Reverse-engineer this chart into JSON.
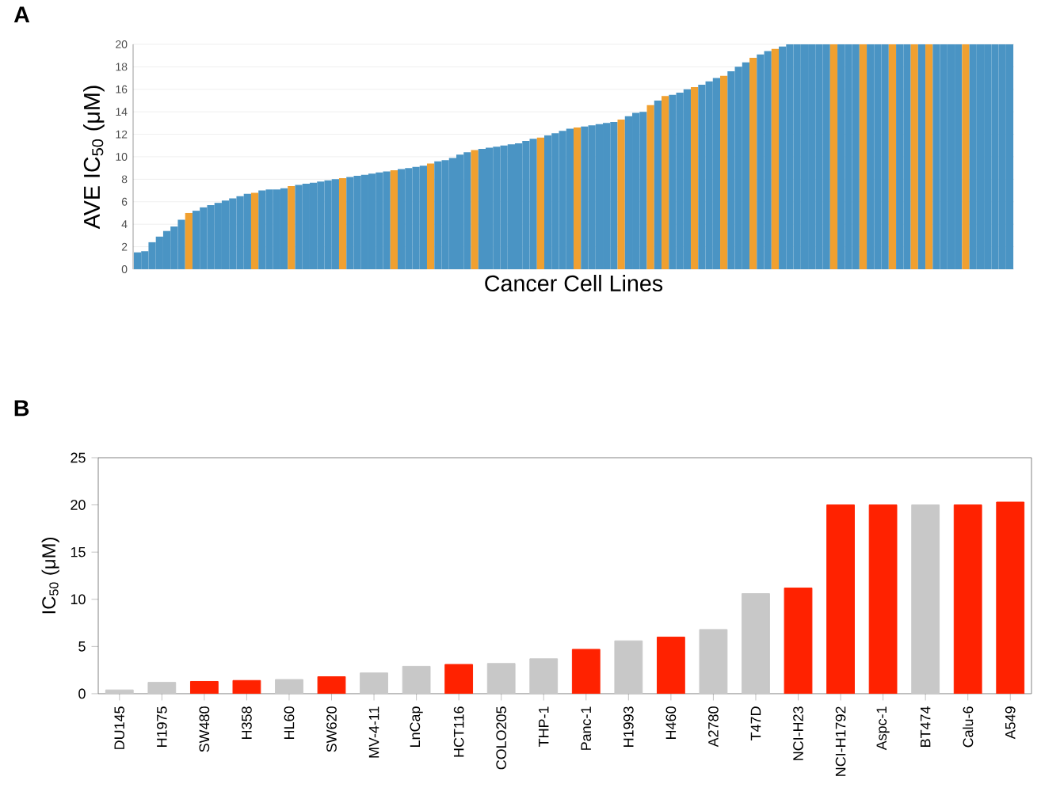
{
  "chart_data": [
    {
      "type": "bar",
      "title": "A",
      "xlabel": "Cancer Cell Lines",
      "ylabel": "AVE IC$_{50}$ (μM)",
      "tick_labels": "y",
      "grid": "y",
      "categories": [
        null,
        null,
        null,
        null,
        null,
        null,
        null,
        null,
        null,
        null,
        null,
        null,
        null,
        null,
        null,
        null,
        null,
        null,
        null,
        null,
        null,
        null,
        null,
        null,
        null,
        null,
        null,
        null,
        null,
        null,
        null,
        null,
        null,
        null,
        null,
        null,
        null,
        null,
        null,
        null,
        null,
        null,
        null,
        null,
        null,
        null,
        null,
        null,
        null,
        null,
        null,
        null,
        null,
        null,
        null,
        null,
        null,
        null,
        null,
        null,
        null,
        null,
        null,
        null,
        null,
        null,
        null,
        null,
        null,
        null,
        null,
        null,
        null,
        null,
        null,
        null,
        null,
        null,
        null,
        null,
        null,
        null,
        null,
        null,
        null,
        null,
        null,
        null,
        null,
        null,
        null,
        null,
        null,
        null,
        null,
        null,
        null,
        null,
        null,
        null,
        null,
        null,
        null,
        null,
        null,
        null,
        null,
        null,
        null,
        null,
        null,
        null,
        null,
        null,
        null,
        null,
        null,
        null,
        null,
        null
      ],
      "values": [
        1.5,
        1.6,
        2.4,
        2.9,
        3.4,
        3.8,
        4.4,
        5.0,
        5.2,
        5.5,
        5.7,
        5.9,
        6.1,
        6.3,
        6.5,
        6.7,
        6.8,
        7.0,
        7.1,
        7.1,
        7.2,
        7.4,
        7.5,
        7.6,
        7.7,
        7.8,
        7.9,
        8.0,
        8.1,
        8.2,
        8.3,
        8.4,
        8.5,
        8.6,
        8.7,
        8.8,
        8.9,
        9.0,
        9.1,
        9.2,
        9.4,
        9.6,
        9.7,
        9.9,
        10.2,
        10.4,
        10.6,
        10.7,
        10.8,
        10.9,
        11.0,
        11.1,
        11.2,
        11.4,
        11.6,
        11.7,
        11.9,
        12.1,
        12.3,
        12.5,
        12.6,
        12.7,
        12.8,
        12.9,
        13.0,
        13.1,
        13.3,
        13.6,
        13.9,
        14.0,
        14.6,
        15.0,
        15.4,
        15.5,
        15.7,
        16.0,
        16.2,
        16.4,
        16.7,
        17.0,
        17.2,
        17.6,
        18.0,
        18.4,
        18.8,
        19.1,
        19.4,
        19.6,
        19.8,
        20,
        20,
        20,
        20,
        20,
        20,
        20,
        20,
        20,
        20,
        20,
        20,
        20,
        20,
        20,
        20,
        20,
        20,
        20,
        20,
        20,
        20,
        20,
        20,
        20,
        20,
        20,
        20,
        20,
        20,
        20
      ],
      "colors": [
        "#4a94c4",
        "#4a94c4",
        "#4a94c4",
        "#4a94c4",
        "#4a94c4",
        "#4a94c4",
        "#4a94c4",
        "#f0a030",
        "#4a94c4",
        "#4a94c4",
        "#4a94c4",
        "#4a94c4",
        "#4a94c4",
        "#4a94c4",
        "#4a94c4",
        "#4a94c4",
        "#f0a030",
        "#4a94c4",
        "#4a94c4",
        "#4a94c4",
        "#4a94c4",
        "#f0a030",
        "#4a94c4",
        "#4a94c4",
        "#4a94c4",
        "#4a94c4",
        "#4a94c4",
        "#4a94c4",
        "#f0a030",
        "#4a94c4",
        "#4a94c4",
        "#4a94c4",
        "#4a94c4",
        "#4a94c4",
        "#4a94c4",
        "#f0a030",
        "#4a94c4",
        "#4a94c4",
        "#4a94c4",
        "#4a94c4",
        "#f0a030",
        "#4a94c4",
        "#4a94c4",
        "#4a94c4",
        "#4a94c4",
        "#4a94c4",
        "#f0a030",
        "#4a94c4",
        "#4a94c4",
        "#4a94c4",
        "#4a94c4",
        "#4a94c4",
        "#4a94c4",
        "#4a94c4",
        "#4a94c4",
        "#f0a030",
        "#4a94c4",
        "#4a94c4",
        "#4a94c4",
        "#4a94c4",
        "#f0a030",
        "#4a94c4",
        "#4a94c4",
        "#4a94c4",
        "#4a94c4",
        "#4a94c4",
        "#f0a030",
        "#4a94c4",
        "#4a94c4",
        "#4a94c4",
        "#f0a030",
        "#4a94c4",
        "#f0a030",
        "#4a94c4",
        "#4a94c4",
        "#4a94c4",
        "#f0a030",
        "#4a94c4",
        "#4a94c4",
        "#4a94c4",
        "#f0a030",
        "#4a94c4",
        "#4a94c4",
        "#4a94c4",
        "#f0a030",
        "#4a94c4",
        "#4a94c4",
        "#f0a030",
        "#4a94c4",
        "#4a94c4",
        "#4a94c4",
        "#4a94c4",
        "#4a94c4",
        "#4a94c4",
        "#4a94c4",
        "#f0a030",
        "#4a94c4",
        "#4a94c4",
        "#4a94c4",
        "#f0a030",
        "#4a94c4",
        "#4a94c4",
        "#4a94c4",
        "#f0a030",
        "#4a94c4",
        "#4a94c4",
        "#f0a030",
        "#4a94c4",
        "#f0a030",
        "#4a94c4",
        "#4a94c4",
        "#4a94c4",
        "#4a94c4",
        "#f0a030",
        "#4a94c4",
        "#4a94c4",
        "#4a94c4",
        "#4a94c4",
        "#4a94c4",
        "#4a94c4"
      ],
      "ylim": [
        0,
        20
      ],
      "yticks": [
        0,
        2,
        4,
        6,
        8,
        10,
        12,
        14,
        16,
        18,
        20
      ]
    },
    {
      "type": "bar",
      "title": "B",
      "ylabel": "IC$_{50}$ (μM)",
      "categories": [
        "DU145",
        "H1975",
        "SW480",
        "H358",
        "HL60",
        "SW620",
        "MV-4-11",
        "LnCap",
        "HCT116",
        "COLO205",
        "THP-1",
        "Panc-1",
        "H1993",
        "H460",
        "A2780",
        "T47D",
        "NCI-H23",
        "NCI-H1792",
        "Aspc-1",
        "BT474",
        "Calu-6",
        "A549"
      ],
      "values": [
        0.4,
        1.2,
        1.3,
        1.4,
        1.5,
        1.8,
        2.2,
        2.9,
        3.1,
        3.2,
        3.7,
        4.7,
        5.6,
        6.0,
        6.8,
        10.6,
        11.2,
        20,
        20,
        20,
        20,
        20.3
      ],
      "colors": [
        "#c8c8c8",
        "#c8c8c8",
        "#ff2200",
        "#ff2200",
        "#c8c8c8",
        "#ff2200",
        "#c8c8c8",
        "#c8c8c8",
        "#ff2200",
        "#c8c8c8",
        "#c8c8c8",
        "#ff2200",
        "#c8c8c8",
        "#ff2200",
        "#c8c8c8",
        "#c8c8c8",
        "#ff2200",
        "#ff2200",
        "#ff2200",
        "#c8c8c8",
        "#ff2200",
        "#ff2200"
      ],
      "ylim": [
        0,
        25
      ],
      "yticks": [
        0,
        5,
        10,
        15,
        20,
        25
      ]
    }
  ]
}
